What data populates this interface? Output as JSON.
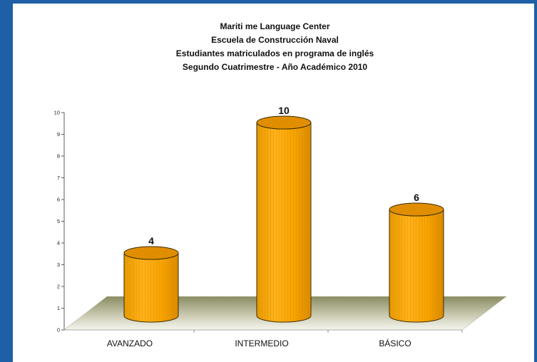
{
  "title_lines": [
    "Mariti  me Language Center",
    "Escuela de Construcción Naval",
    "Estudiantes matriculados en programa de inglés",
    "Segundo Cuatrimestre - Año Académico 2010"
  ],
  "colors": {
    "frame": "#1f5fa6",
    "bar_fill": "#f7a300",
    "bar_top": "#e08e00",
    "floor_dark": "#8a8c63",
    "floor_light": "#f4f4ee"
  },
  "chart_data": {
    "type": "bar",
    "style": "3d-cylinder",
    "categories": [
      "AVANZADO",
      "INTERMEDIO",
      "BÁSICO"
    ],
    "values": [
      4,
      10,
      6
    ],
    "data_labels": [
      "4",
      "10",
      "6"
    ],
    "ylim": [
      0,
      10
    ],
    "yticks": [
      "0",
      "1",
      "2",
      "3",
      "4",
      "5",
      "6",
      "7",
      "8",
      "9",
      "10"
    ],
    "title": "Mariti  me Language Center / Escuela de Construcción Naval / Estudiantes matriculados en programa de inglés / Segundo Cuatrimestre - Año Académico 2010",
    "xlabel": "",
    "ylabel": "",
    "grid": false,
    "legend": "none"
  }
}
